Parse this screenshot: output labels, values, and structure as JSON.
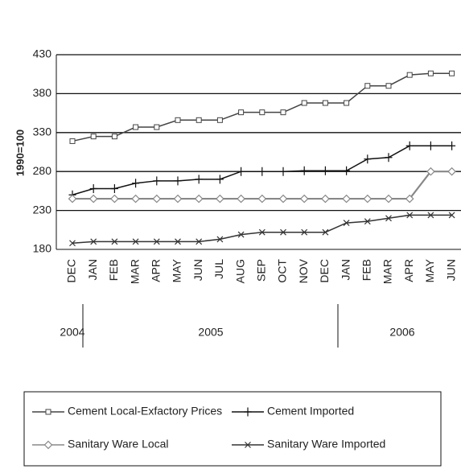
{
  "chart_data": {
    "type": "line",
    "y_label": "1990=100",
    "categories": [
      "DEC",
      "JAN",
      "FEB",
      "MAR",
      "APR",
      "MAY",
      "JUN",
      "JUL",
      "AUG",
      "SEP",
      "OCT",
      "NOV",
      "DEC",
      "JAN",
      "FEB",
      "MAR",
      "APR",
      "MAY",
      "JUN"
    ],
    "year_labels": [
      "2004",
      "2005",
      "2006"
    ],
    "ylim": [
      180,
      430
    ],
    "yticks": [
      180,
      230,
      280,
      330,
      380,
      430
    ],
    "grid": true,
    "series": [
      {
        "name": "Cement Local-Exfactory Prices",
        "color": "#444444",
        "marker": "square",
        "values": [
          319,
          325,
          325,
          337,
          337,
          346,
          346,
          346,
          356,
          356,
          356,
          368,
          368,
          368,
          390,
          390,
          404,
          406,
          406
        ]
      },
      {
        "name": "Cement Imported",
        "color": "#111111",
        "marker": "plus",
        "values": [
          250,
          258,
          258,
          265,
          268,
          268,
          270,
          270,
          280,
          280,
          280,
          281,
          281,
          281,
          296,
          298,
          313,
          313,
          313
        ]
      },
      {
        "name": "Sanitary Ware Local",
        "color": "#888888",
        "marker": "diamond",
        "values": [
          245,
          245,
          245,
          245,
          245,
          245,
          245,
          245,
          245,
          245,
          245,
          245,
          245,
          245,
          245,
          245,
          245,
          280,
          280
        ]
      },
      {
        "name": "Sanitary Ware Imported",
        "color": "#333333",
        "marker": "x",
        "values": [
          188,
          190,
          190,
          190,
          190,
          190,
          190,
          193,
          199,
          202,
          202,
          202,
          202,
          214,
          216,
          220,
          224,
          224,
          224
        ]
      }
    ]
  }
}
